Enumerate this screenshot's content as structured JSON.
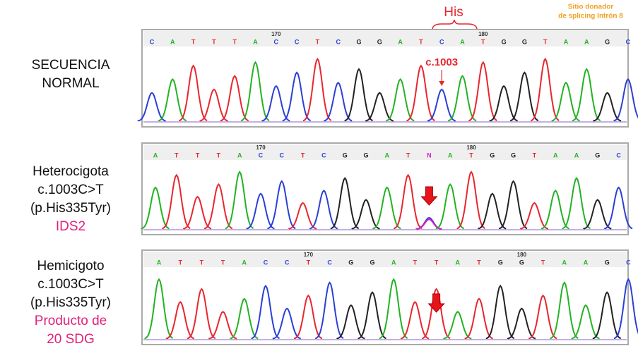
{
  "header": {
    "codon": "His",
    "splice_site": [
      "Sitio donador",
      "de splicing Intrón 8"
    ]
  },
  "base_colors": {
    "A": "#22b322",
    "C": "#2b3fd6",
    "G": "#222222",
    "T": "#e8262e",
    "N": "#d61fc2"
  },
  "panels": [
    {
      "label": [
        "SECUENCIA",
        "NORMAL"
      ],
      "note": [],
      "bases": [
        "C",
        "A",
        "T",
        "T",
        "T",
        "A",
        "C",
        "C",
        "T",
        "C",
        "G",
        "G",
        "A",
        "T",
        "C",
        "A",
        "T",
        "G",
        "G",
        "T",
        "A",
        "A",
        "G",
        "C"
      ],
      "positions": [
        170,
        180
      ],
      "marker": "c.1003"
    },
    {
      "label": [
        "Heterocigota",
        "c.1003C>T",
        "(p.His335Tyr)"
      ],
      "note": [
        "IDS2"
      ],
      "bases": [
        "A",
        "T",
        "T",
        "T",
        "A",
        "C",
        "C",
        "T",
        "C",
        "G",
        "G",
        "A",
        "T",
        "N",
        "A",
        "T",
        "G",
        "G",
        "T",
        "A",
        "A",
        "G",
        "C"
      ],
      "positions": [
        170,
        180
      ]
    },
    {
      "label": [
        "Hemicigoto",
        "c.1003C>T",
        "(p.His335Tyr)"
      ],
      "note": [
        "Producto de",
        "20 SDG"
      ],
      "bases": [
        "A",
        "T",
        "T",
        "T",
        "A",
        "C",
        "C",
        "T",
        "C",
        "G",
        "G",
        "A",
        "T",
        "T",
        "A",
        "T",
        "G",
        "G",
        "T",
        "A",
        "A",
        "G",
        "C"
      ],
      "positions": [
        170,
        180
      ]
    }
  ]
}
